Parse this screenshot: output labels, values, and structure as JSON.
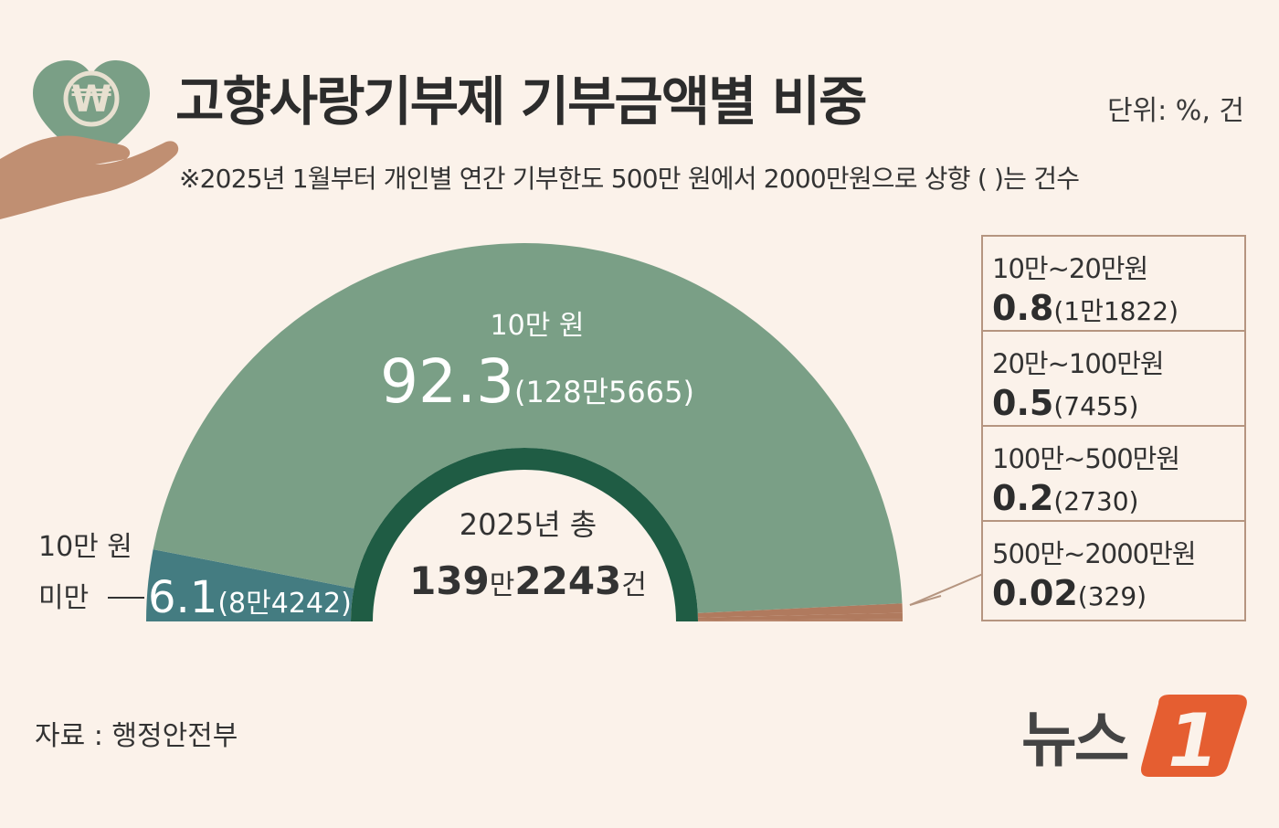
{
  "header": {
    "title": "고향사랑기부제 기부금액별 비중",
    "unit": "단위: %, 건",
    "note": "※2025년 1월부터 개인별 연간 기부한도 500만 원에서 2000만원으로 상향 ( )는 건수",
    "logo_symbol": "₩"
  },
  "colors": {
    "main_segment": "#7a9f86",
    "under_10k_segment": "#447c81",
    "inner_ring": "#1f5c44",
    "small_segments": "#b07a5e",
    "brand_accent": "#e55e31"
  },
  "center": {
    "year_label": "2025년 총",
    "total_a": "139",
    "total_a_unit": "만",
    "total_b": "2243",
    "total_b_unit": "건"
  },
  "chart_data": {
    "type": "pie",
    "style": "semicircle-donut",
    "title": "고향사랑기부제 기부금액별 비중",
    "unit": "%, 건",
    "segments": [
      {
        "label": "10만 원 미만",
        "percent": 6.1,
        "count": 84242,
        "percent_text": "6.1",
        "count_text": "(8만4242)"
      },
      {
        "label": "10만 원",
        "percent": 92.3,
        "count": 1285665,
        "percent_text": "92.3",
        "count_text": "(128만5665)"
      },
      {
        "label": "10만~20만원",
        "percent": 0.8,
        "count": 11822,
        "percent_text": "0.8",
        "count_text": "(1만1822)"
      },
      {
        "label": "20만~100만원",
        "percent": 0.5,
        "count": 7455,
        "percent_text": "0.5",
        "count_text": "(7455)"
      },
      {
        "label": "100만~500만원",
        "percent": 0.2,
        "count": 2730,
        "percent_text": "0.2",
        "count_text": "(2730)"
      },
      {
        "label": "500만~2000만원",
        "percent": 0.02,
        "count": 329,
        "percent_text": "0.02",
        "count_text": "(329)"
      }
    ],
    "total": 1392243
  },
  "labels": {
    "main_label": "10만 원",
    "under_label_line1": "10만 원",
    "under_label_line2": "미만"
  },
  "source": "자료 : 행정안전부",
  "brand": {
    "text": "뉴스",
    "mark": "1"
  }
}
